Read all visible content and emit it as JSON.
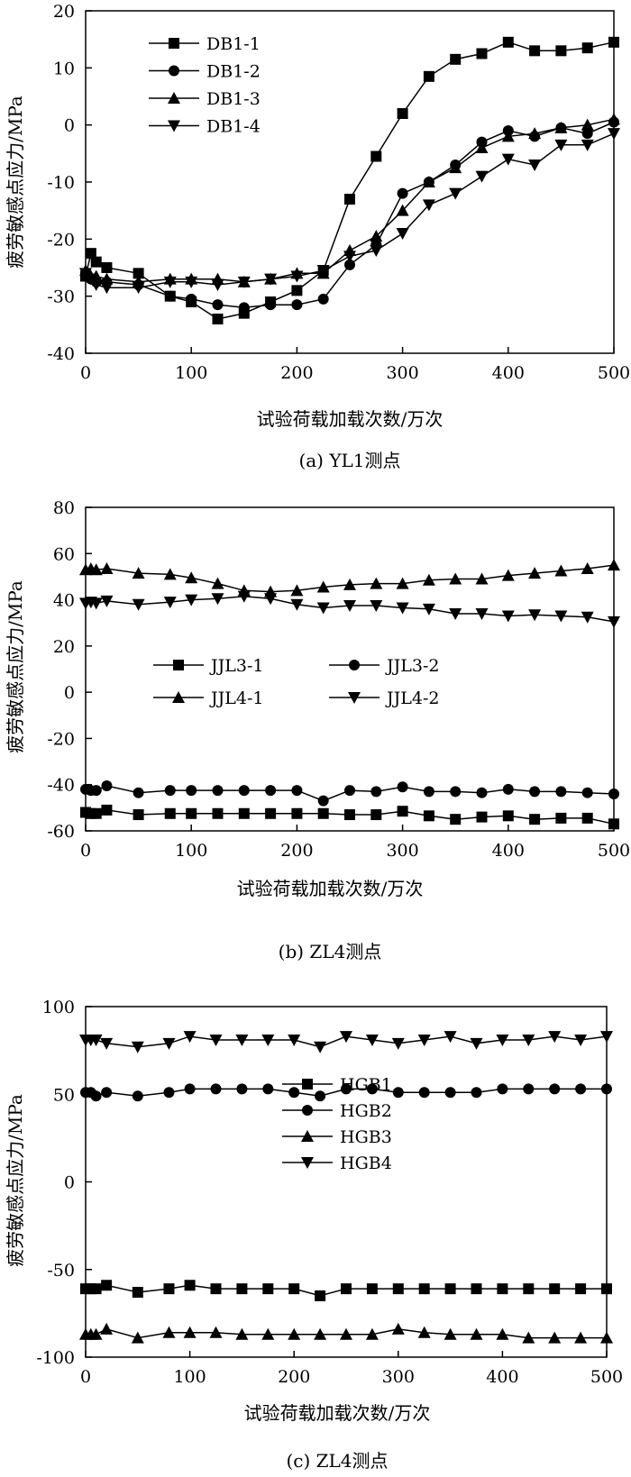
{
  "figure": {
    "x_values": [
      0,
      5,
      10,
      20,
      50,
      80,
      100,
      125,
      150,
      175,
      200,
      225,
      250,
      275,
      300,
      325,
      350,
      375,
      400,
      425,
      450,
      475,
      500
    ]
  },
  "chart_data": [
    {
      "type": "line",
      "panel": "a",
      "caption": "(a) YL1测点",
      "xlabel": "试验荷载加载次数/万次",
      "ylabel": "疲劳敏感点应力/MPa",
      "xlim": [
        0,
        500
      ],
      "ylim": [
        -40,
        20
      ],
      "xticks": [
        "0",
        "100",
        "200",
        "300",
        "400",
        "500"
      ],
      "yticks": [
        "20",
        "10",
        "0",
        "-10",
        "-20",
        "-30",
        "-40"
      ],
      "legend_position": "top-left",
      "series": [
        {
          "name": "DB1-1",
          "marker": "square",
          "values": [
            -26.5,
            -22.5,
            -24,
            -25,
            -26,
            -30,
            -31,
            -34,
            -33,
            -31,
            -29,
            -25.5,
            -13,
            -5.5,
            2,
            8.5,
            11.5,
            12.5,
            14.5,
            13,
            13,
            13.5,
            14.5
          ]
        },
        {
          "name": "DB1-2",
          "marker": "circle",
          "values": [
            -26.5,
            -27,
            -27.5,
            -27.5,
            -28,
            -30,
            -30.5,
            -31.5,
            -32,
            -31.5,
            -31.5,
            -30.5,
            -24.5,
            -21,
            -12,
            -10,
            -7,
            -3,
            -1,
            -2,
            -0.5,
            -1.5,
            0.5
          ]
        },
        {
          "name": "DB1-3",
          "marker": "triangle-up",
          "values": [
            -25.5,
            -26.5,
            -26.5,
            -27,
            -27.5,
            -27,
            -27,
            -27,
            -27.5,
            -27,
            -26,
            -26,
            -22,
            -19.5,
            -15,
            -10,
            -7.5,
            -4,
            -2,
            -1.5,
            -0.5,
            0,
            1
          ]
        },
        {
          "name": "DB1-4",
          "marker": "triangle-down",
          "values": [
            -26,
            -27,
            -28,
            -28.5,
            -28.5,
            -27.5,
            -27.5,
            -28,
            -27.5,
            -27,
            -26.5,
            -25.5,
            -23,
            -22,
            -19,
            -14,
            -12,
            -9,
            -6,
            -7,
            -3.5,
            -3.5,
            -1.5
          ]
        }
      ]
    },
    {
      "type": "line",
      "panel": "b",
      "caption": "(b) ZL4测点",
      "xlabel": "试验荷载加载次数/万次",
      "ylabel": "疲劳敏感点应力/MPa",
      "xlim": [
        0,
        500
      ],
      "ylim": [
        -60,
        80
      ],
      "xticks": [
        "0",
        "100",
        "200",
        "300",
        "400",
        "500"
      ],
      "yticks": [
        "80",
        "60",
        "40",
        "20",
        "0",
        "-20",
        "-40",
        "-60"
      ],
      "legend_position": "center",
      "series": [
        {
          "name": "JJL3-1",
          "marker": "square",
          "values": [
            -52,
            -52.5,
            -52.5,
            -51,
            -53,
            -52.5,
            -52.5,
            -52.5,
            -52.5,
            -52.5,
            -52.5,
            -52.5,
            -53,
            -53,
            -51.5,
            -53.5,
            -55,
            -54,
            -53.5,
            -55,
            -54.5,
            -54.5,
            -57
          ]
        },
        {
          "name": "JJL3-2",
          "marker": "circle",
          "values": [
            -42,
            -42.5,
            -42.5,
            -40.5,
            -43.5,
            -42.5,
            -42.5,
            -42.5,
            -42.5,
            -42.5,
            -42.5,
            -47,
            -42.5,
            -43,
            -41,
            -43,
            -43,
            -43.5,
            -42,
            -43,
            -43,
            -43.5,
            -44
          ]
        },
        {
          "name": "JJL4-1",
          "marker": "triangle-up",
          "values": [
            53,
            53.5,
            53,
            53.5,
            51.5,
            51,
            49.5,
            47,
            44,
            43.5,
            44,
            45.5,
            46.5,
            47,
            47,
            48.5,
            49,
            49,
            50.5,
            51.5,
            52.5,
            53.5,
            55
          ]
        },
        {
          "name": "JJL4-2",
          "marker": "triangle-down",
          "values": [
            38.5,
            39,
            38.5,
            39.5,
            38,
            39,
            40,
            40.5,
            41.5,
            40.5,
            38,
            36.5,
            37.5,
            37.5,
            36.5,
            36,
            34,
            34,
            33,
            33.5,
            33,
            32.5,
            30.5
          ]
        }
      ]
    },
    {
      "type": "line",
      "panel": "c",
      "caption": "(c) ZL4测点",
      "xlabel": "试验荷载加载次数/万次",
      "ylabel": "疲劳敏感点应力/MPa",
      "xlim": [
        0,
        500
      ],
      "ylim": [
        -100,
        100
      ],
      "xticks": [
        "0",
        "100",
        "200",
        "300",
        "400",
        "500"
      ],
      "yticks": [
        "100",
        "50",
        "0",
        "-50",
        "-100"
      ],
      "legend_position": "center",
      "series": [
        {
          "name": "HGB1",
          "marker": "square",
          "values": [
            -61,
            -61,
            -61,
            -59,
            -63,
            -61,
            -59,
            -61,
            -61,
            -61,
            -61,
            -65,
            -61,
            -61,
            -61,
            -61,
            -61,
            -61,
            -61,
            -61,
            -61,
            -61,
            -61
          ]
        },
        {
          "name": "HGB2",
          "marker": "circle",
          "values": [
            51,
            51,
            49,
            51,
            49,
            51,
            53,
            53,
            53,
            53,
            51,
            49,
            53,
            53,
            51,
            51,
            51,
            51,
            53,
            53,
            53,
            53,
            53
          ]
        },
        {
          "name": "HGB3",
          "marker": "triangle-up",
          "values": [
            -87,
            -87,
            -87,
            -84,
            -89,
            -86,
            -86,
            -86,
            -87,
            -87,
            -87,
            -87,
            -87,
            -87,
            -84,
            -86,
            -87,
            -87,
            -87,
            -89,
            -89,
            -89,
            -89
          ]
        },
        {
          "name": "HGB4",
          "marker": "triangle-down",
          "values": [
            81,
            81,
            81,
            79,
            77,
            79,
            83,
            81,
            81,
            81,
            81,
            77,
            83,
            81,
            79,
            81,
            83,
            79,
            81,
            81,
            83,
            81,
            83
          ]
        }
      ]
    }
  ]
}
